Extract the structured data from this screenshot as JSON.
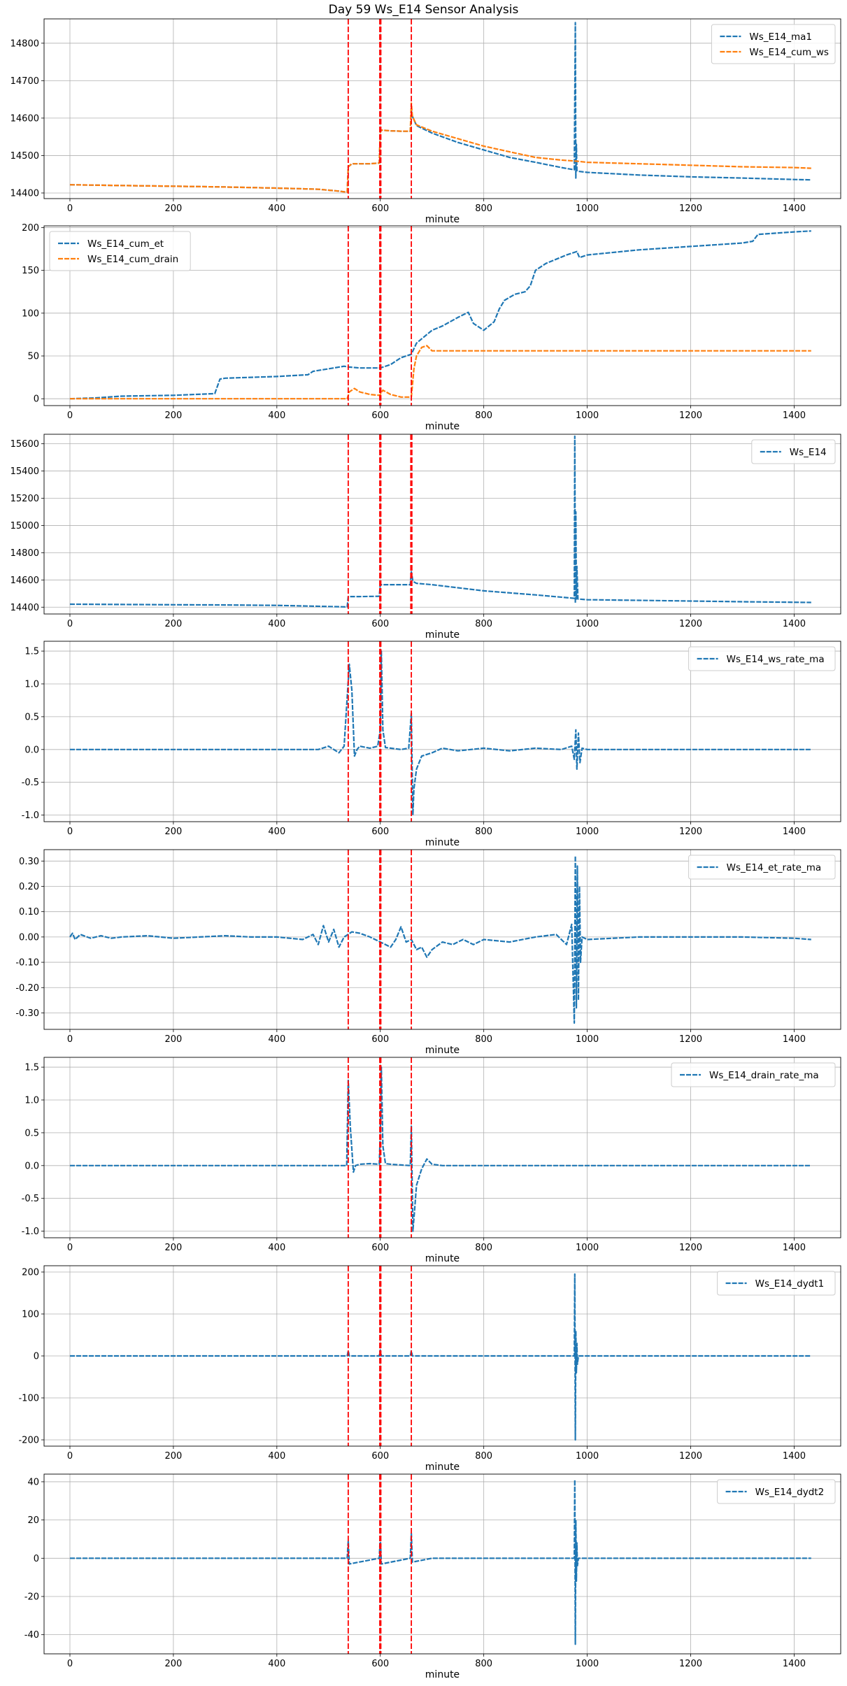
{
  "figure": {
    "title": "Day 59 Ws_E14 Sensor Analysis"
  },
  "colors": {
    "blue": "#1f77b4",
    "orange": "#ff7f0e",
    "event_line": "#ff0000",
    "grid": "#b0b0b0"
  },
  "chart_data": [
    {
      "type": "line",
      "xlabel": "minute",
      "ylabel": "",
      "xlim": [
        -50,
        1490
      ],
      "ylim": [
        14385,
        14865
      ],
      "grid": true,
      "legend": "top-right",
      "xticks": [
        0,
        200,
        400,
        600,
        800,
        1000,
        1200,
        1400
      ],
      "yticks": [
        14400,
        14500,
        14600,
        14700,
        14800
      ],
      "event_lines": [
        538,
        599,
        601,
        660
      ],
      "series": [
        {
          "name": "Ws_E14_ma1",
          "color": "#1f77b4",
          "x": [
            0,
            100,
            200,
            300,
            400,
            480,
            520,
            536,
            538,
            545,
            560,
            580,
            598,
            600,
            602,
            620,
            640,
            658,
            660,
            662,
            670,
            700,
            750,
            800,
            850,
            900,
            950,
            975,
            977,
            978,
            979,
            980,
            982,
            1000,
            1100,
            1200,
            1300,
            1400,
            1433
          ],
          "y": [
            14422,
            14420,
            14418,
            14416,
            14413,
            14410,
            14405,
            14402,
            14470,
            14478,
            14478,
            14478,
            14480,
            14565,
            14568,
            14566,
            14565,
            14565,
            14620,
            14605,
            14580,
            14560,
            14535,
            14515,
            14495,
            14482,
            14468,
            14462,
            14855,
            14440,
            14530,
            14460,
            14458,
            14455,
            14448,
            14443,
            14440,
            14436,
            14435
          ]
        },
        {
          "name": "Ws_E14_cum_ws",
          "color": "#ff7f0e",
          "x": [
            0,
            100,
            200,
            300,
            400,
            480,
            520,
            536,
            538,
            545,
            560,
            580,
            598,
            600,
            602,
            620,
            640,
            658,
            660,
            662,
            670,
            700,
            750,
            800,
            850,
            900,
            950,
            980,
            1000,
            1100,
            1200,
            1300,
            1400,
            1433
          ],
          "y": [
            14422,
            14420,
            14418,
            14416,
            14413,
            14410,
            14405,
            14402,
            14470,
            14478,
            14478,
            14478,
            14480,
            14565,
            14568,
            14566,
            14565,
            14565,
            14640,
            14605,
            14582,
            14565,
            14545,
            14525,
            14510,
            14495,
            14488,
            14485,
            14482,
            14478,
            14474,
            14470,
            14468,
            14466
          ]
        }
      ]
    },
    {
      "type": "line",
      "xlabel": "minute",
      "ylabel": "",
      "xlim": [
        -50,
        1490
      ],
      "ylim": [
        -8,
        202
      ],
      "grid": true,
      "legend": "top-left",
      "xticks": [
        0,
        200,
        400,
        600,
        800,
        1000,
        1200,
        1400
      ],
      "yticks": [
        0,
        50,
        100,
        150,
        200
      ],
      "event_lines": [
        538,
        599,
        601,
        660
      ],
      "series": [
        {
          "name": "Ws_E14_cum_et",
          "color": "#1f77b4",
          "x": [
            0,
            50,
            100,
            200,
            280,
            290,
            300,
            400,
            460,
            470,
            490,
            500,
            510,
            530,
            540,
            560,
            580,
            600,
            620,
            640,
            660,
            670,
            690,
            700,
            720,
            750,
            770,
            780,
            800,
            820,
            830,
            840,
            860,
            880,
            890,
            900,
            920,
            940,
            960,
            980,
            985,
            1000,
            1100,
            1200,
            1300,
            1320,
            1330,
            1400,
            1433
          ],
          "y": [
            0,
            1,
            3,
            4,
            6,
            23,
            24,
            26,
            28,
            32,
            34,
            35,
            36,
            38,
            37,
            36,
            36,
            36,
            40,
            48,
            52,
            65,
            75,
            80,
            85,
            95,
            101,
            88,
            80,
            90,
            105,
            115,
            122,
            125,
            132,
            150,
            158,
            163,
            168,
            172,
            165,
            168,
            174,
            178,
            182,
            184,
            192,
            195,
            196
          ]
        },
        {
          "name": "Ws_E14_cum_drain",
          "color": "#ff7f0e",
          "x": [
            0,
            100,
            200,
            300,
            400,
            500,
            536,
            540,
            550,
            560,
            580,
            598,
            600,
            605,
            620,
            640,
            660,
            665,
            670,
            680,
            690,
            700,
            800,
            900,
            1000,
            1100,
            1200,
            1300,
            1433
          ],
          "y": [
            0,
            0,
            0,
            0,
            0,
            0,
            0,
            8,
            12,
            8,
            5,
            4,
            5,
            10,
            5,
            2,
            2,
            35,
            50,
            60,
            62,
            56,
            56,
            56,
            56,
            56,
            56,
            56,
            56
          ]
        }
      ]
    },
    {
      "type": "line",
      "xlabel": "minute",
      "ylabel": "",
      "xlim": [
        -50,
        1490
      ],
      "ylim": [
        14350,
        15670
      ],
      "grid": true,
      "legend": "top-right",
      "xticks": [
        0,
        200,
        400,
        600,
        800,
        1000,
        1200,
        1400
      ],
      "yticks": [
        14400,
        14600,
        14800,
        15000,
        15200,
        15400,
        15600
      ],
      "event_lines": [
        538,
        599,
        601,
        659,
        661
      ],
      "series": [
        {
          "name": "Ws_E14",
          "color": "#1f77b4",
          "x": [
            0,
            100,
            200,
            300,
            400,
            536,
            538,
            560,
            598,
            600,
            640,
            658,
            660,
            663,
            670,
            700,
            800,
            900,
            975,
            976,
            977,
            978,
            979,
            980,
            982,
            1000,
            1100,
            1200,
            1300,
            1433
          ],
          "y": [
            14422,
            14420,
            14418,
            14416,
            14413,
            14402,
            14478,
            14478,
            14480,
            14565,
            14565,
            14565,
            14660,
            14590,
            14575,
            14565,
            14520,
            14490,
            14465,
            15655,
            14430,
            15100,
            14460,
            14700,
            14460,
            14455,
            14450,
            14445,
            14440,
            14435
          ]
        }
      ]
    },
    {
      "type": "line",
      "xlabel": "minute",
      "ylabel": "",
      "xlim": [
        -50,
        1490
      ],
      "ylim": [
        -1.1,
        1.65
      ],
      "grid": true,
      "legend": "top-right",
      "xticks": [
        0,
        200,
        400,
        600,
        800,
        1000,
        1200,
        1400
      ],
      "yticks": [
        -1.0,
        -0.5,
        0.0,
        0.5,
        1.0,
        1.5
      ],
      "event_lines": [
        538,
        599,
        601,
        660
      ],
      "series": [
        {
          "name": "Ws_E14_ws_rate_ma",
          "color": "#1f77b4",
          "x": [
            0,
            100,
            200,
            300,
            400,
            480,
            500,
            520,
            530,
            540,
            545,
            550,
            555,
            560,
            580,
            595,
            600,
            602,
            605,
            610,
            620,
            640,
            655,
            660,
            663,
            665,
            670,
            680,
            700,
            720,
            750,
            800,
            850,
            900,
            950,
            970,
            975,
            978,
            980,
            983,
            986,
            990,
            1000,
            1100,
            1200,
            1300,
            1433
          ],
          "y": [
            0,
            0,
            0,
            0,
            0,
            0,
            0.05,
            -0.05,
            0.05,
            1.3,
            0.9,
            -0.1,
            0.0,
            0.05,
            0.02,
            0.05,
            0.3,
            1.5,
            0.3,
            0.03,
            0.02,
            0.0,
            0.02,
            0.55,
            -1.0,
            -0.6,
            -0.3,
            -0.1,
            -0.05,
            0.02,
            -0.02,
            0.02,
            -0.02,
            0.02,
            0.0,
            0.05,
            -0.15,
            0.3,
            -0.3,
            0.25,
            -0.2,
            0.02,
            0,
            0,
            0,
            0,
            0
          ]
        }
      ]
    },
    {
      "type": "line",
      "xlabel": "minute",
      "ylabel": "",
      "xlim": [
        -50,
        1490
      ],
      "ylim": [
        -0.365,
        0.345
      ],
      "grid": true,
      "legend": "top-right",
      "xticks": [
        0,
        200,
        400,
        600,
        800,
        1000,
        1200,
        1400
      ],
      "yticks": [
        -0.3,
        -0.2,
        -0.1,
        0.0,
        0.1,
        0.2,
        0.3
      ],
      "event_lines": [
        538,
        599,
        601,
        660
      ],
      "series": [
        {
          "name": "Ws_E14_et_rate_ma",
          "color": "#1f77b4",
          "x": [
            0,
            5,
            10,
            20,
            40,
            60,
            80,
            100,
            150,
            200,
            250,
            300,
            350,
            400,
            450,
            470,
            480,
            490,
            500,
            510,
            520,
            530,
            545,
            560,
            580,
            600,
            620,
            630,
            640,
            650,
            660,
            670,
            680,
            690,
            700,
            720,
            740,
            760,
            780,
            800,
            850,
            900,
            940,
            960,
            970,
            975,
            977,
            979,
            981,
            983,
            985,
            987,
            990,
            1000,
            1100,
            1200,
            1300,
            1400,
            1433
          ],
          "y": [
            0,
            0.015,
            -0.01,
            0.01,
            -0.005,
            0.005,
            -0.005,
            0,
            0.005,
            -0.005,
            0,
            0.005,
            0,
            0,
            -0.01,
            0.01,
            -0.03,
            0.045,
            -0.02,
            0.03,
            -0.04,
            0.0,
            0.02,
            0.015,
            0.0,
            -0.02,
            -0.04,
            -0.01,
            0.04,
            -0.02,
            -0.01,
            -0.05,
            -0.04,
            -0.08,
            -0.05,
            -0.02,
            -0.03,
            -0.01,
            -0.03,
            -0.01,
            -0.02,
            0.0,
            0.01,
            -0.03,
            0.05,
            -0.34,
            0.32,
            -0.28,
            0.28,
            -0.25,
            0.2,
            -0.1,
            0.0,
            -0.01,
            0,
            0,
            0,
            -0.005,
            -0.01
          ]
        }
      ]
    },
    {
      "type": "line",
      "xlabel": "minute",
      "ylabel": "",
      "xlim": [
        -50,
        1490
      ],
      "ylim": [
        -1.1,
        1.65
      ],
      "grid": true,
      "legend": "top-right",
      "xticks": [
        0,
        200,
        400,
        600,
        800,
        1000,
        1200,
        1400
      ],
      "yticks": [
        -1.0,
        -0.5,
        0.0,
        0.5,
        1.0,
        1.5
      ],
      "event_lines": [
        538,
        599,
        601,
        660
      ],
      "series": [
        {
          "name": "Ws_E14_drain_rate_ma",
          "color": "#1f77b4",
          "x": [
            0,
            100,
            200,
            300,
            400,
            500,
            535,
            538,
            542,
            548,
            552,
            560,
            580,
            598,
            600,
            602,
            605,
            610,
            620,
            640,
            658,
            660,
            663,
            666,
            670,
            680,
            690,
            700,
            720,
            800,
            900,
            1000,
            1100,
            1200,
            1300,
            1433
          ],
          "y": [
            0,
            0,
            0,
            0,
            0,
            0,
            0,
            1.3,
            0.6,
            -0.1,
            0.0,
            0.02,
            0.03,
            0.02,
            0.5,
            1.5,
            0.3,
            0.03,
            0.02,
            0.01,
            0.0,
            0.6,
            -1.0,
            -0.7,
            -0.3,
            -0.05,
            0.1,
            0.02,
            0,
            0,
            0,
            0,
            0,
            0,
            0,
            0
          ]
        }
      ]
    },
    {
      "type": "line",
      "xlabel": "minute",
      "ylabel": "",
      "xlim": [
        -50,
        1490
      ],
      "ylim": [
        -215,
        215
      ],
      "grid": true,
      "legend": "top-right",
      "xticks": [
        0,
        200,
        400,
        600,
        800,
        1000,
        1200,
        1400
      ],
      "yticks": [
        -200,
        -100,
        0,
        100,
        200
      ],
      "event_lines": [
        538,
        599,
        601,
        660
      ],
      "series": [
        {
          "name": "Ws_E14_dydt1",
          "color": "#1f77b4",
          "x": [
            0,
            200,
            400,
            536,
            538,
            540,
            598,
            600,
            602,
            658,
            660,
            662,
            700,
            900,
            975,
            976,
            977,
            978,
            979,
            980,
            981,
            983,
            1000,
            1200,
            1433
          ],
          "y": [
            0,
            0,
            0,
            0,
            12,
            0,
            0,
            14,
            0,
            0,
            12,
            0,
            0,
            0,
            0,
            195,
            -200,
            60,
            -40,
            30,
            -20,
            0,
            0,
            0,
            0
          ]
        }
      ]
    },
    {
      "type": "line",
      "xlabel": "minute",
      "ylabel": "",
      "xlim": [
        -50,
        1490
      ],
      "ylim": [
        -50,
        44
      ],
      "grid": true,
      "legend": "top-right",
      "xticks": [
        0,
        200,
        400,
        600,
        800,
        1000,
        1200,
        1400
      ],
      "yticks": [
        -40,
        -20,
        0,
        20,
        40
      ],
      "event_lines": [
        538,
        599,
        601,
        660
      ],
      "series": [
        {
          "name": "Ws_E14_dydt2",
          "color": "#1f77b4",
          "x": [
            0,
            200,
            400,
            536,
            538,
            540,
            598,
            600,
            602,
            658,
            660,
            662,
            700,
            900,
            975,
            976,
            977,
            978,
            979,
            980,
            981,
            983,
            1000,
            1200,
            1433
          ],
          "y": [
            0,
            0,
            0,
            0,
            9,
            -3,
            0,
            12,
            -3,
            0,
            13,
            -2,
            0,
            0,
            0,
            41,
            -45,
            20,
            -12,
            8,
            -4,
            0,
            0,
            0,
            0
          ]
        }
      ]
    }
  ]
}
